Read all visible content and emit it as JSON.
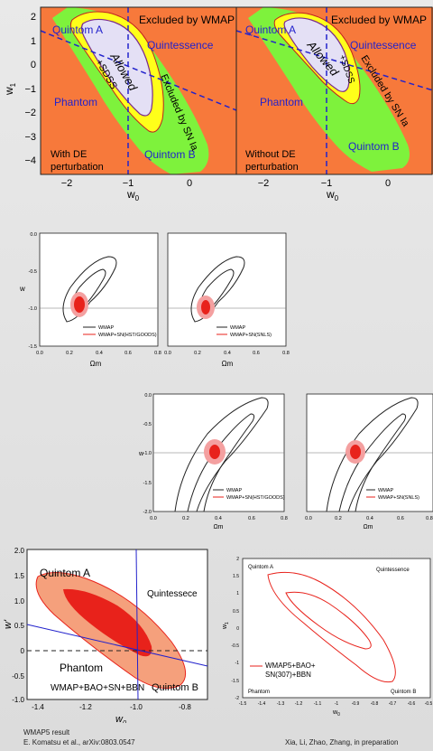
{
  "page": {
    "footer_left_line1": "WMAP5 result",
    "footer_left_line2": "E. Komatsu et al., arXiv:0803.0547",
    "footer_right": "Xia, Li, Zhao, Zhang, in preparation"
  },
  "colors": {
    "orange": "#f7793b",
    "green": "#7ef23c",
    "yellow": "#ffff1a",
    "lavender": "#e4e0f5",
    "blue": "#2222cc",
    "red": "#e8221b",
    "salmon": "#f5a07c"
  },
  "chart_data": [
    {
      "type": "scatter",
      "panel": "top-left",
      "xlabel": "w",
      "xlabel_sub": "0",
      "ylabel": "w",
      "ylabel_sub": "1",
      "xticks": [
        "−2",
        "−1",
        "0"
      ],
      "yticks": [
        "2",
        "1",
        "0",
        "−1",
        "−2",
        "−3",
        "−4"
      ],
      "xlim": [
        -2.4,
        0.5
      ],
      "ylim": [
        -4.5,
        2.5
      ],
      "regions": {
        "quintom_a": "Quintom A",
        "excluded": "Excluded by WMAP",
        "quintessence": "Quintessence",
        "phantom": "Phantom",
        "quintom_b": "Quintom B",
        "allowed": "Allowed",
        "sdss": "+SDSS",
        "excluded_sn": "Excluded by SN Ia",
        "note_line1": "With DE",
        "note_line2": "perturbation"
      },
      "dividing_lines": {
        "vertical_x": -1,
        "diagonal": [
          [
            -2.4,
            1.5
          ],
          [
            0.5,
            -1.8
          ]
        ]
      }
    },
    {
      "type": "scatter",
      "panel": "top-right",
      "xlabel": "w",
      "xlabel_sub": "0",
      "xticks": [
        "−2",
        "−1",
        "0"
      ],
      "xlim": [
        -2.4,
        0.5
      ],
      "ylim": [
        -4.5,
        2.5
      ],
      "regions": {
        "quintom_a": "Quintom A",
        "excluded": "Excluded by WMAP",
        "quintessence": "Quintessence",
        "phantom": "Phantom",
        "quintom_b": "Quintom B",
        "allowed": "Allowed",
        "sdss": "+SDSS",
        "excluded_sn": "Excluded by SN Ia",
        "note_line1": "Without DE",
        "note_line2": "perturbation"
      }
    },
    {
      "type": "scatter",
      "panel": "row2-left",
      "xlabel": "Ωm",
      "ylabel": "w",
      "xlim": [
        0.0,
        0.8
      ],
      "ylim": [
        -1.5,
        0.0
      ],
      "xticks": [
        "0.0",
        "0.2",
        "0.4",
        "0.6",
        "0.8"
      ],
      "yticks": [
        "0.0",
        "-0.5",
        "-1.0",
        "-1.5"
      ],
      "legend": [
        "WMAP",
        "WMAP+SN(HST/GOODS)"
      ],
      "best_fit": {
        "x": 0.27,
        "y": -0.95
      }
    },
    {
      "type": "scatter",
      "panel": "row2-right",
      "xlabel": "Ωm",
      "xlim": [
        0.0,
        0.8
      ],
      "ylim": [
        -1.5,
        0.0
      ],
      "xticks": [
        "0.0",
        "0.2",
        "0.4",
        "0.6",
        "0.8"
      ],
      "legend": [
        "WMAP",
        "WMAP+SN(SNLS)"
      ],
      "best_fit": {
        "x": 0.26,
        "y": -0.97
      }
    },
    {
      "type": "scatter",
      "panel": "row3-left",
      "xlabel": "Ωm",
      "ylabel": "w",
      "xlim": [
        0.0,
        0.8
      ],
      "ylim": [
        -2.0,
        0.0
      ],
      "xticks": [
        "0.0",
        "0.2",
        "0.4",
        "0.6",
        "0.8"
      ],
      "yticks": [
        "0.0",
        "-0.5",
        "-1.0",
        "-1.5",
        "-2.0"
      ],
      "legend": [
        "WMAP",
        "WMAP+SN(HST/GOODS)"
      ]
    },
    {
      "type": "scatter",
      "panel": "row3-right",
      "xlabel": "Ωm",
      "xlim": [
        0.0,
        0.8
      ],
      "ylim": [
        -2.0,
        0.0
      ],
      "xticks": [
        "0.0",
        "0.2",
        "0.4",
        "0.6",
        "0.8"
      ],
      "legend": [
        "WMAP",
        "WMAP+SN(SNLS)"
      ]
    },
    {
      "type": "scatter",
      "panel": "bottom-left",
      "xlabel": "w",
      "xlabel_sub": "0",
      "ylabel": "w'",
      "xlim": [
        -1.5,
        -0.7
      ],
      "ylim": [
        -1.0,
        2.0
      ],
      "xticks": [
        "-1.4",
        "-1.2",
        "-1.0",
        "-0.8"
      ],
      "yticks": [
        "2.0",
        "1.5",
        "1.0",
        "0.5",
        "0",
        "-0.5",
        "-1.0"
      ],
      "regions": {
        "quintom_a": "Quintom A",
        "quintessence": "Quintessece",
        "phantom": "Phantom",
        "quintom_b": "Quintom B",
        "combo": "WMAP+BAO+SN+BBN"
      }
    },
    {
      "type": "scatter",
      "panel": "bottom-right",
      "xlabel": "w",
      "xlabel_sub": "0",
      "ylabel": "w",
      "ylabel_sub": "1",
      "xlim": [
        -1.5,
        -0.5
      ],
      "ylim": [
        -2.0,
        2.0
      ],
      "xticks": [
        "-1.5",
        "-1.4",
        "-1.3",
        "-1.2",
        "-1.1",
        "-1",
        "-0.9",
        "-0.8",
        "-0.7",
        "-0.6",
        "-0.5"
      ],
      "yticks": [
        "2",
        "1.5",
        "1",
        "0.5",
        "0",
        "-0.5",
        "-1",
        "-1.5",
        "-2"
      ],
      "regions": {
        "quintom_a": "Quintom A",
        "quintessence": "Quintessence",
        "phantom": "Phantom",
        "quintom_b": "Quintom B"
      },
      "legend_line1": "WMAP5+BAO+",
      "legend_line2": "SN(307)+BBN"
    }
  ]
}
